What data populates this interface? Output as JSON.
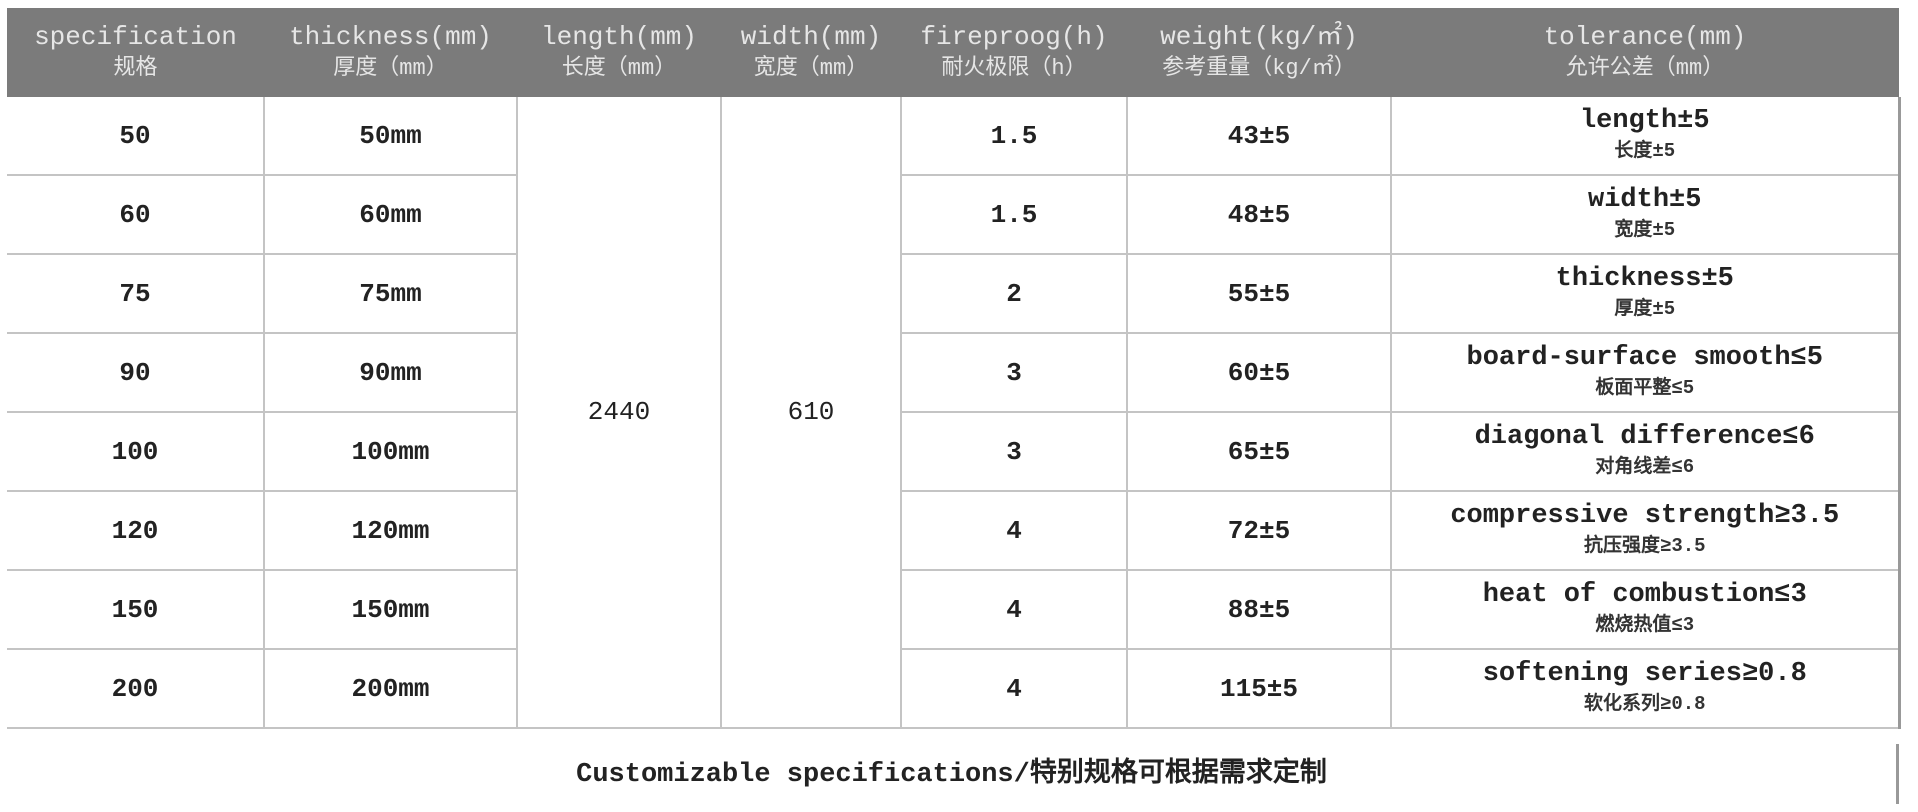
{
  "headers": [
    {
      "en": "specification",
      "cn": "规格"
    },
    {
      "en": "thickness(mm)",
      "cn": "厚度（mm）"
    },
    {
      "en": "length(mm)",
      "cn": "长度（mm）"
    },
    {
      "en": "width(mm)",
      "cn": "宽度（mm）"
    },
    {
      "en": "fireproog(h)",
      "cn": "耐火极限（h）"
    },
    {
      "en": "weight(kg/㎡)",
      "cn": "参考重量（kg/㎡）"
    },
    {
      "en": "tolerance(mm)",
      "cn": "允许公差（mm）"
    }
  ],
  "length": "2440",
  "width": "610",
  "rows": [
    {
      "spec": "50",
      "thickness": "50mm",
      "fire": "1.5",
      "weight": "43±5",
      "tol_en": "length±5",
      "tol_cn": "长度±5"
    },
    {
      "spec": "60",
      "thickness": "60mm",
      "fire": "1.5",
      "weight": "48±5",
      "tol_en": "width±5",
      "tol_cn": "宽度±5"
    },
    {
      "spec": "75",
      "thickness": "75mm",
      "fire": "2",
      "weight": "55±5",
      "tol_en": "thickness±5",
      "tol_cn": "厚度±5"
    },
    {
      "spec": "90",
      "thickness": "90mm",
      "fire": "3",
      "weight": "60±5",
      "tol_en": "board-surface smooth≤5",
      "tol_cn": "板面平整≤5"
    },
    {
      "spec": "100",
      "thickness": "100mm",
      "fire": "3",
      "weight": "65±5",
      "tol_en": "diagonal difference≤6",
      "tol_cn": "对角线差≤6"
    },
    {
      "spec": "120",
      "thickness": "120mm",
      "fire": "4",
      "weight": "72±5",
      "tol_en": "compressive strength≥3.5",
      "tol_cn": "抗压强度≥3.5"
    },
    {
      "spec": "150",
      "thickness": "150mm",
      "fire": "4",
      "weight": "88±5",
      "tol_en": "heat of combustion≤3",
      "tol_cn": "燃烧热值≤3"
    },
    {
      "spec": "200",
      "thickness": "200mm",
      "fire": "4",
      "weight": "115±5",
      "tol_en": "softening series≥0.8",
      "tol_cn": "软化系列≥0.8"
    }
  ],
  "footer": "Customizable specifications/特别规格可根据需求定制"
}
